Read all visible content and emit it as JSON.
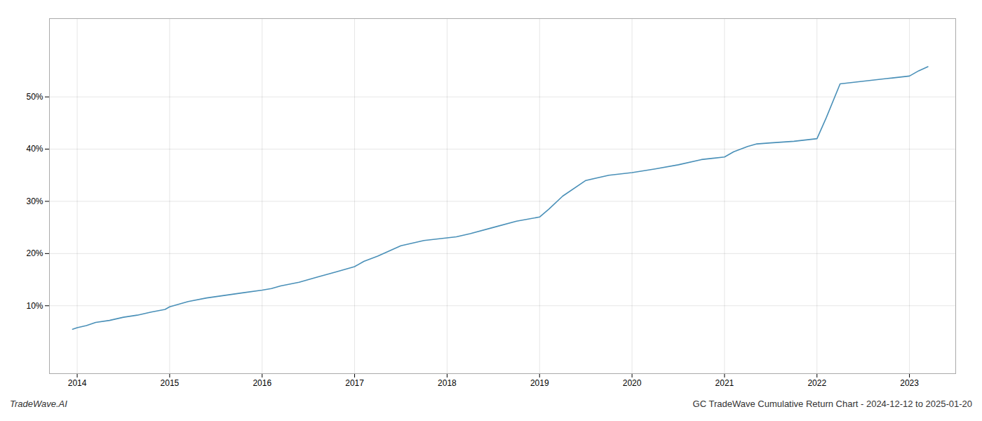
{
  "chart_data": {
    "type": "line",
    "annotations": [
      "TradeWave.AI",
      "GC TradeWave Cumulative Return Chart - 2024-12-12 to 2025-01-20"
    ],
    "x": [
      2013.95,
      2014.0,
      2014.1,
      2014.2,
      2014.35,
      2014.5,
      2014.65,
      2014.8,
      2014.95,
      2015.0,
      2015.1,
      2015.2,
      2015.4,
      2015.6,
      2015.8,
      2016.0,
      2016.1,
      2016.2,
      2016.4,
      2016.6,
      2016.8,
      2017.0,
      2017.1,
      2017.25,
      2017.5,
      2017.75,
      2018.0,
      2018.1,
      2018.25,
      2018.5,
      2018.75,
      2019.0,
      2019.1,
      2019.25,
      2019.5,
      2019.75,
      2020.0,
      2020.25,
      2020.5,
      2020.75,
      2021.0,
      2021.1,
      2021.25,
      2021.35,
      2021.5,
      2021.75,
      2022.0,
      2022.1,
      2022.25,
      2022.5,
      2022.75,
      2023.0,
      2023.1,
      2023.2
    ],
    "values": [
      5.5,
      5.8,
      6.2,
      6.8,
      7.2,
      7.8,
      8.2,
      8.8,
      9.3,
      9.8,
      10.3,
      10.8,
      11.5,
      12.0,
      12.5,
      13.0,
      13.3,
      13.8,
      14.5,
      15.5,
      16.5,
      17.5,
      18.5,
      19.5,
      21.5,
      22.5,
      23.0,
      23.2,
      23.8,
      25.0,
      26.2,
      27.0,
      28.5,
      31.0,
      34.0,
      35.0,
      35.5,
      36.2,
      37.0,
      38.0,
      38.5,
      39.5,
      40.5,
      41.0,
      41.2,
      41.5,
      42.0,
      46.0,
      52.5,
      53.0,
      53.5,
      54.0,
      55.0,
      55.8
    ],
    "color": "#4a90b8",
    "xlim": [
      2013.7,
      2023.5
    ],
    "xticks": [
      2014,
      2015,
      2016,
      2017,
      2018,
      2019,
      2020,
      2021,
      2022,
      2023
    ],
    "ylim": [
      -3,
      65
    ],
    "yticks": [
      {
        "value": 10,
        "label": "10%"
      },
      {
        "value": 20,
        "label": "20%"
      },
      {
        "value": 30,
        "label": "30%"
      },
      {
        "value": 40,
        "label": "40%"
      },
      {
        "value": 50,
        "label": "50%"
      }
    ],
    "grid": true
  }
}
